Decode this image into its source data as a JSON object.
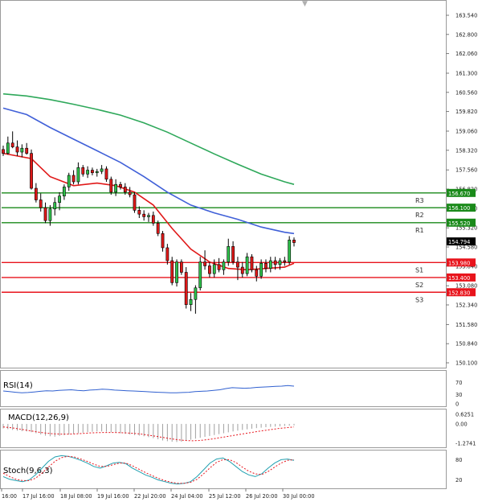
{
  "chart_data": {
    "type": "candlestick",
    "price_axis": {
      "ticks": [
        "163.540",
        "162.800",
        "162.060",
        "161.300",
        "160.560",
        "159.820",
        "159.060",
        "158.320",
        "157.560",
        "156.820",
        "156.080",
        "155.320",
        "154.580",
        "153.840",
        "153.080",
        "152.340",
        "151.580",
        "150.840",
        "150.100"
      ],
      "tick_values": [
        163.54,
        162.8,
        162.06,
        161.3,
        160.56,
        159.82,
        159.06,
        158.32,
        157.56,
        156.82,
        156.08,
        155.32,
        154.58,
        153.84,
        153.08,
        152.34,
        151.58,
        150.84,
        150.1
      ],
      "ylim": [
        150.1,
        164.35
      ]
    },
    "time_axis": {
      "labels": [
        "16:00",
        "17 Jul 16:00",
        "18 Jul 08:00",
        "19 Jul 16:00",
        "22 Jul 20:00",
        "24 Jul 04:00",
        "25 Jul 12:00",
        "26 Jul 20:00",
        "30 Jul 00:00"
      ]
    },
    "current_price": "154.794",
    "levels": [
      {
        "name": "R3",
        "value": 156.67,
        "label": "156.670",
        "color": "#1a8a1a"
      },
      {
        "name": "R2",
        "value": 156.1,
        "label": "156.100",
        "color": "#1a8a1a"
      },
      {
        "name": "R1",
        "value": 155.52,
        "label": "155.520",
        "color": "#1a8a1a"
      },
      {
        "name": "S1",
        "value": 153.98,
        "label": "153.980",
        "color": "#e8141c"
      },
      {
        "name": "S2",
        "value": 153.4,
        "label": "153.400",
        "color": "#e8141c"
      },
      {
        "name": "S3",
        "value": 152.83,
        "label": "152.830",
        "color": "#e8141c"
      }
    ],
    "candles": [
      {
        "o": 158.35,
        "h": 158.5,
        "l": 158.1,
        "c": 158.2
      },
      {
        "o": 158.2,
        "h": 158.85,
        "l": 158.15,
        "c": 158.6
      },
      {
        "o": 158.6,
        "h": 159.05,
        "l": 158.4,
        "c": 158.45
      },
      {
        "o": 158.45,
        "h": 158.7,
        "l": 158.1,
        "c": 158.25
      },
      {
        "o": 158.25,
        "h": 158.55,
        "l": 158.05,
        "c": 158.4
      },
      {
        "o": 158.4,
        "h": 158.6,
        "l": 158.15,
        "c": 158.2
      },
      {
        "o": 158.2,
        "h": 158.35,
        "l": 156.8,
        "c": 156.85
      },
      {
        "o": 156.85,
        "h": 157.05,
        "l": 156.3,
        "c": 156.4
      },
      {
        "o": 156.4,
        "h": 156.65,
        "l": 155.95,
        "c": 156.1
      },
      {
        "o": 156.1,
        "h": 156.3,
        "l": 155.5,
        "c": 155.6
      },
      {
        "o": 155.6,
        "h": 156.2,
        "l": 155.4,
        "c": 156.05
      },
      {
        "o": 156.05,
        "h": 156.5,
        "l": 155.8,
        "c": 156.3
      },
      {
        "o": 156.3,
        "h": 156.7,
        "l": 156.0,
        "c": 156.55
      },
      {
        "o": 156.55,
        "h": 157.0,
        "l": 156.4,
        "c": 156.9
      },
      {
        "o": 156.9,
        "h": 157.45,
        "l": 156.75,
        "c": 157.35
      },
      {
        "o": 157.35,
        "h": 157.55,
        "l": 157.0,
        "c": 157.1
      },
      {
        "o": 157.1,
        "h": 157.85,
        "l": 157.0,
        "c": 157.65
      },
      {
        "o": 157.65,
        "h": 157.75,
        "l": 157.3,
        "c": 157.4
      },
      {
        "o": 157.4,
        "h": 157.7,
        "l": 157.25,
        "c": 157.55
      },
      {
        "o": 157.55,
        "h": 157.65,
        "l": 157.35,
        "c": 157.45
      },
      {
        "o": 157.45,
        "h": 157.6,
        "l": 157.3,
        "c": 157.5
      },
      {
        "o": 157.5,
        "h": 157.75,
        "l": 157.4,
        "c": 157.6
      },
      {
        "o": 157.6,
        "h": 157.7,
        "l": 157.1,
        "c": 157.2
      },
      {
        "o": 157.2,
        "h": 157.3,
        "l": 156.6,
        "c": 156.7
      },
      {
        "o": 156.7,
        "h": 157.2,
        "l": 156.55,
        "c": 157.0
      },
      {
        "o": 157.0,
        "h": 157.1,
        "l": 156.8,
        "c": 156.9
      },
      {
        "o": 156.9,
        "h": 157.05,
        "l": 156.6,
        "c": 156.7
      },
      {
        "o": 156.7,
        "h": 156.9,
        "l": 156.5,
        "c": 156.6
      },
      {
        "o": 156.6,
        "h": 156.7,
        "l": 155.9,
        "c": 156.0
      },
      {
        "o": 156.0,
        "h": 156.15,
        "l": 155.7,
        "c": 155.85
      },
      {
        "o": 155.85,
        "h": 156.0,
        "l": 155.6,
        "c": 155.75
      },
      {
        "o": 155.75,
        "h": 155.9,
        "l": 155.55,
        "c": 155.8
      },
      {
        "o": 155.8,
        "h": 155.95,
        "l": 155.4,
        "c": 155.5
      },
      {
        "o": 155.5,
        "h": 155.6,
        "l": 155.0,
        "c": 155.1
      },
      {
        "o": 155.1,
        "h": 155.2,
        "l": 154.4,
        "c": 154.55
      },
      {
        "o": 154.55,
        "h": 154.7,
        "l": 153.9,
        "c": 154.05
      },
      {
        "o": 154.05,
        "h": 154.2,
        "l": 153.1,
        "c": 153.2
      },
      {
        "o": 153.2,
        "h": 154.1,
        "l": 153.05,
        "c": 154.0
      },
      {
        "o": 154.0,
        "h": 154.1,
        "l": 153.5,
        "c": 153.6
      },
      {
        "o": 153.6,
        "h": 153.8,
        "l": 152.2,
        "c": 152.35
      },
      {
        "o": 152.35,
        "h": 152.8,
        "l": 152.1,
        "c": 152.55
      },
      {
        "o": 152.55,
        "h": 153.1,
        "l": 152.0,
        "c": 153.0
      },
      {
        "o": 153.0,
        "h": 154.2,
        "l": 152.9,
        "c": 154.0
      },
      {
        "o": 154.0,
        "h": 154.45,
        "l": 153.7,
        "c": 153.85
      },
      {
        "o": 153.85,
        "h": 154.0,
        "l": 153.4,
        "c": 153.55
      },
      {
        "o": 153.55,
        "h": 154.1,
        "l": 153.4,
        "c": 153.9
      },
      {
        "o": 153.9,
        "h": 154.15,
        "l": 153.6,
        "c": 153.7
      },
      {
        "o": 153.7,
        "h": 154.1,
        "l": 153.5,
        "c": 154.0
      },
      {
        "o": 154.0,
        "h": 154.9,
        "l": 153.85,
        "c": 154.6
      },
      {
        "o": 154.6,
        "h": 154.8,
        "l": 153.9,
        "c": 154.0
      },
      {
        "o": 154.0,
        "h": 154.2,
        "l": 153.3,
        "c": 153.8
      },
      {
        "o": 153.8,
        "h": 154.0,
        "l": 153.4,
        "c": 153.55
      },
      {
        "o": 153.55,
        "h": 154.35,
        "l": 153.45,
        "c": 154.2
      },
      {
        "o": 154.2,
        "h": 154.3,
        "l": 153.6,
        "c": 153.7
      },
      {
        "o": 153.7,
        "h": 153.85,
        "l": 153.25,
        "c": 153.45
      },
      {
        "o": 153.45,
        "h": 154.1,
        "l": 153.35,
        "c": 153.95
      },
      {
        "o": 153.95,
        "h": 154.1,
        "l": 153.6,
        "c": 153.75
      },
      {
        "o": 153.75,
        "h": 154.2,
        "l": 153.6,
        "c": 154.05
      },
      {
        "o": 154.05,
        "h": 154.2,
        "l": 153.7,
        "c": 153.9
      },
      {
        "o": 153.9,
        "h": 154.15,
        "l": 153.7,
        "c": 154.05
      },
      {
        "o": 154.05,
        "h": 154.2,
        "l": 153.85,
        "c": 154.0
      },
      {
        "o": 154.0,
        "h": 155.0,
        "l": 153.9,
        "c": 154.85
      },
      {
        "o": 154.85,
        "h": 154.95,
        "l": 154.6,
        "c": 154.75
      }
    ],
    "ma_red": [
      [
        0,
        158.2
      ],
      [
        6,
        158.0
      ],
      [
        10,
        157.3
      ],
      [
        15,
        156.95
      ],
      [
        20,
        157.05
      ],
      [
        24,
        156.95
      ],
      [
        28,
        156.7
      ],
      [
        32,
        156.2
      ],
      [
        36,
        155.3
      ],
      [
        40,
        154.5
      ],
      [
        44,
        154.0
      ],
      [
        48,
        153.75
      ],
      [
        52,
        153.7
      ],
      [
        56,
        153.75
      ],
      [
        60,
        153.8
      ],
      [
        62,
        153.95
      ]
    ],
    "ma_blue": [
      [
        0,
        159.95
      ],
      [
        5,
        159.7
      ],
      [
        10,
        159.2
      ],
      [
        15,
        158.75
      ],
      [
        20,
        158.3
      ],
      [
        25,
        157.85
      ],
      [
        30,
        157.3
      ],
      [
        35,
        156.7
      ],
      [
        40,
        156.2
      ],
      [
        45,
        155.9
      ],
      [
        50,
        155.65
      ],
      [
        55,
        155.35
      ],
      [
        60,
        155.15
      ],
      [
        62,
        155.1
      ]
    ],
    "ma_green": [
      [
        0,
        160.5
      ],
      [
        5,
        160.42
      ],
      [
        10,
        160.28
      ],
      [
        15,
        160.1
      ],
      [
        20,
        159.9
      ],
      [
        25,
        159.68
      ],
      [
        30,
        159.38
      ],
      [
        35,
        159.02
      ],
      [
        40,
        158.6
      ],
      [
        45,
        158.18
      ],
      [
        50,
        157.78
      ],
      [
        55,
        157.4
      ],
      [
        60,
        157.1
      ],
      [
        62,
        157.0
      ]
    ],
    "rsi": {
      "label": "RSI(14)",
      "ticks": [
        "70",
        "30",
        "0"
      ],
      "tick_values": [
        70,
        30,
        0
      ],
      "ylim": [
        0,
        100
      ],
      "values": [
        42,
        40,
        38,
        36,
        37,
        39,
        41,
        43,
        42,
        44,
        45,
        46,
        44,
        43,
        45,
        46,
        48,
        47,
        45,
        44,
        43,
        42,
        41,
        40,
        39,
        38,
        37,
        36,
        36,
        37,
        38,
        40,
        41,
        42,
        44,
        46,
        50,
        53,
        52,
        51,
        52,
        54,
        55,
        56,
        57,
        58,
        60,
        58
      ],
      "color": "#3060d0"
    },
    "macd": {
      "label": "MACD(12,26,9)",
      "ticks": [
        "0.6251",
        "0.00",
        "-1.2741"
      ],
      "tick_values": [
        0.6251,
        0.0,
        -1.2741
      ],
      "ylim": [
        -1.5,
        0.85
      ],
      "hist": [
        -0.3,
        -0.35,
        -0.4,
        -0.45,
        -0.48,
        -0.5,
        -0.55,
        -0.62,
        -0.7,
        -0.78,
        -0.82,
        -0.85,
        -0.8,
        -0.75,
        -0.7,
        -0.66,
        -0.62,
        -0.58,
        -0.55,
        -0.52,
        -0.5,
        -0.5,
        -0.52,
        -0.55,
        -0.58,
        -0.62,
        -0.66,
        -0.7,
        -0.74,
        -0.78,
        -0.82,
        -0.88,
        -0.95,
        -1.02,
        -1.1,
        -1.15,
        -1.18,
        -1.2,
        -1.18,
        -1.12,
        -1.05,
        -0.98,
        -0.92,
        -0.86,
        -0.8,
        -0.74,
        -0.68,
        -0.62,
        -0.56,
        -0.5,
        -0.45,
        -0.4,
        -0.36,
        -0.32,
        -0.28,
        -0.25,
        -0.22,
        -0.2,
        -0.18,
        -0.16,
        -0.14,
        -0.12,
        -0.1
      ],
      "signal": [
        -0.2,
        -0.25,
        -0.32,
        -0.4,
        -0.48,
        -0.56,
        -0.62,
        -0.66,
        -0.68,
        -0.68,
        -0.66,
        -0.63,
        -0.6,
        -0.58,
        -0.57,
        -0.57,
        -0.58,
        -0.6,
        -0.63,
        -0.68,
        -0.75,
        -0.82,
        -0.9,
        -0.98,
        -1.05,
        -1.1,
        -1.12,
        -1.1,
        -1.05,
        -0.98,
        -0.9,
        -0.82,
        -0.74,
        -0.66,
        -0.58,
        -0.5,
        -0.43,
        -0.36,
        -0.3,
        -0.25,
        -0.2
      ],
      "signal_color": "#e8141c",
      "hist_color": "#a0a0a0"
    },
    "stoch": {
      "label": "Stoch(9,6,3)",
      "ticks": [
        "80",
        "20"
      ],
      "tick_values": [
        80,
        20
      ],
      "ylim": [
        0,
        100
      ],
      "main": [
        30,
        22,
        18,
        15,
        20,
        35,
        55,
        75,
        88,
        92,
        90,
        85,
        78,
        70,
        60,
        55,
        62,
        70,
        72,
        68,
        55,
        45,
        35,
        28,
        20,
        15,
        10,
        8,
        10,
        15,
        30,
        50,
        70,
        82,
        85,
        75,
        60,
        45,
        35,
        30,
        38,
        55,
        70,
        80,
        82,
        78
      ],
      "signal": [
        40,
        30,
        22,
        18,
        18,
        25,
        40,
        58,
        75,
        86,
        90,
        88,
        82,
        75,
        67,
        60,
        60,
        65,
        70,
        70,
        62,
        52,
        42,
        33,
        25,
        18,
        13,
        10,
        10,
        13,
        22,
        38,
        56,
        72,
        80,
        80,
        72,
        58,
        46,
        38,
        36,
        45,
        58,
        70,
        78,
        80
      ],
      "main_color": "#20a0b0",
      "signal_color": "#e8141c"
    }
  }
}
